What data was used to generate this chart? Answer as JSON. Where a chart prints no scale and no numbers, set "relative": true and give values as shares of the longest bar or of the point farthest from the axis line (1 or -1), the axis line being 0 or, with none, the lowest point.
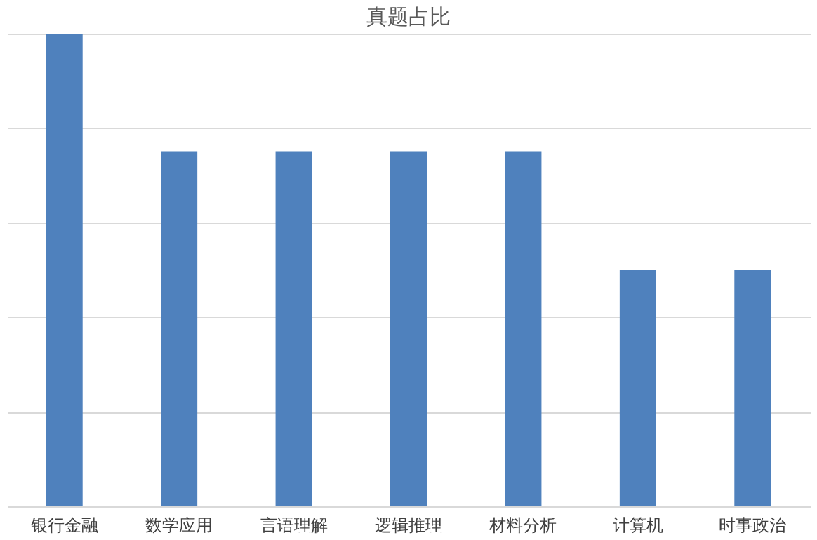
{
  "chart_data": {
    "type": "bar",
    "title": "真题占比",
    "relative": true,
    "grid": "y",
    "categories": [
      "银行金融",
      "数学应用",
      "言语理解",
      "逻辑推理",
      "材料分析",
      "计算机",
      "时事政治"
    ],
    "values": [
      1,
      0.75,
      0.75,
      0.75,
      0.75,
      0.5,
      0.5
    ],
    "color": "#4f81bd"
  }
}
